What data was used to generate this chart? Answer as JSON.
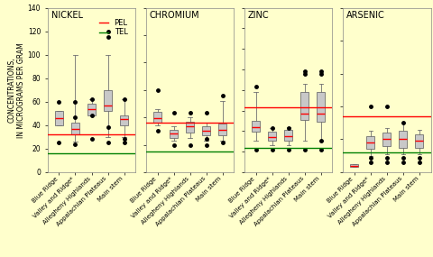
{
  "panels": [
    {
      "title": "NICKEL",
      "ylim": [
        0,
        140
      ],
      "yticks": [
        0,
        20,
        40,
        60,
        80,
        100,
        120,
        140
      ],
      "PEL": 32,
      "TEL": 16,
      "boxes": [
        {
          "q1": 40,
          "median": 46,
          "q3": 52,
          "whislo": 40,
          "whishi": 52,
          "fliers": [
            25,
            60
          ]
        },
        {
          "q1": 32,
          "median": 37,
          "q3": 42,
          "whislo": 26,
          "whishi": 100,
          "fliers": [
            24,
            47,
            60
          ]
        },
        {
          "q1": 48,
          "median": 54,
          "q3": 58,
          "whislo": 48,
          "whishi": 62,
          "fliers": [
            28,
            48,
            62
          ]
        },
        {
          "q1": 52,
          "median": 57,
          "q3": 70,
          "whislo": 30,
          "whishi": 100,
          "fliers": [
            25,
            38,
            120,
            115
          ]
        },
        {
          "q1": 40,
          "median": 45,
          "q3": 48,
          "whislo": 30,
          "whishi": 62,
          "fliers": [
            25,
            28,
            62
          ]
        }
      ]
    },
    {
      "title": "CHROMIUM",
      "ylim": [
        0,
        300
      ],
      "yticks": [
        0,
        50,
        100,
        150,
        200,
        250,
        300
      ],
      "PEL": 90,
      "TEL": 37,
      "boxes": [
        {
          "q1": 90,
          "median": 98,
          "q3": 110,
          "whislo": 85,
          "whishi": 115,
          "fliers": [
            75,
            150
          ]
        },
        {
          "q1": 63,
          "median": 70,
          "q3": 77,
          "whislo": 58,
          "whishi": 83,
          "fliers": [
            50,
            108
          ]
        },
        {
          "q1": 72,
          "median": 83,
          "q3": 92,
          "whislo": 62,
          "whishi": 100,
          "fliers": [
            50,
            108
          ]
        },
        {
          "q1": 68,
          "median": 76,
          "q3": 84,
          "whislo": 58,
          "whishi": 90,
          "fliers": [
            50,
            60,
            108
          ]
        },
        {
          "q1": 68,
          "median": 78,
          "q3": 88,
          "whislo": 58,
          "whishi": 130,
          "fliers": [
            55,
            140
          ]
        }
      ]
    },
    {
      "title": "ZINC",
      "ylim": [
        0,
        800
      ],
      "yticks": [
        0,
        100,
        200,
        300,
        400,
        500,
        600,
        700,
        800
      ],
      "PEL": 315,
      "TEL": 120,
      "boxes": [
        {
          "q1": 195,
          "median": 220,
          "q3": 250,
          "whislo": 155,
          "whishi": 390,
          "fliers": [
            110,
            415
          ]
        },
        {
          "q1": 155,
          "median": 170,
          "q3": 195,
          "whislo": 130,
          "whishi": 215,
          "fliers": [
            108,
            215
          ]
        },
        {
          "q1": 155,
          "median": 175,
          "q3": 205,
          "whislo": 130,
          "whishi": 220,
          "fliers": [
            108,
            215
          ]
        },
        {
          "q1": 255,
          "median": 285,
          "q3": 390,
          "whislo": 155,
          "whishi": 430,
          "fliers": [
            108,
            490,
            480
          ]
        },
        {
          "q1": 245,
          "median": 285,
          "q3": 390,
          "whislo": 155,
          "whishi": 430,
          "fliers": [
            108,
            155,
            490,
            480
          ]
        }
      ]
    },
    {
      "title": "ARSENIC",
      "ylim": [
        0,
        50
      ],
      "yticks": [
        0,
        10,
        20,
        30,
        40,
        50
      ],
      "PEL": 17,
      "TEL": 6,
      "boxes": [
        {
          "q1": 1.5,
          "median": 2.0,
          "q3": 2.5,
          "whislo": 1.5,
          "whishi": 2.5,
          "fliers": []
        },
        {
          "q1": 7.0,
          "median": 9.0,
          "q3": 11.0,
          "whislo": 5.0,
          "whishi": 12.5,
          "fliers": [
            3.0,
            4.5,
            20.0
          ]
        },
        {
          "q1": 8.0,
          "median": 10.0,
          "q3": 12.0,
          "whislo": 5.5,
          "whishi": 13.5,
          "fliers": [
            3.0,
            4.5,
            20.0
          ]
        },
        {
          "q1": 7.5,
          "median": 10.0,
          "q3": 12.5,
          "whislo": 5.5,
          "whishi": 15.0,
          "fliers": [
            3.0,
            4.5,
            15.0
          ]
        },
        {
          "q1": 7.5,
          "median": 9.5,
          "q3": 11.5,
          "whislo": 5.5,
          "whishi": 13.0,
          "fliers": [
            3.0,
            4.5
          ]
        }
      ]
    }
  ],
  "categories": [
    "Blue Ridge",
    "Valley and Ridge*",
    "Allegheny Highlands",
    "Appalachian Plateaus",
    "Main stem"
  ],
  "bg_color": "#ffffcc",
  "box_facecolor": "#c8c8c8",
  "box_edgecolor": "#707070",
  "median_color": "red",
  "whisker_color": "#707070",
  "cap_color": "#707070",
  "flier_color": "black",
  "PEL_color": "red",
  "TEL_color": "green",
  "ylabel": "CONCENTRATIONS,\nIN MICROGRAMS PER GRAM",
  "ylabel_fontsize": 5.5,
  "title_fontsize": 7,
  "tick_fontsize": 5.5,
  "xtick_fontsize": 5.0,
  "legend_fontsize": 6
}
